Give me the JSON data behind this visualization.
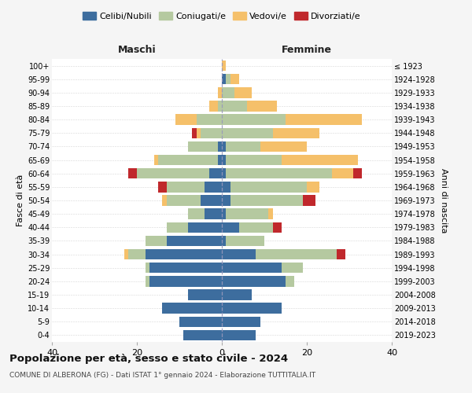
{
  "age_groups": [
    "0-4",
    "5-9",
    "10-14",
    "15-19",
    "20-24",
    "25-29",
    "30-34",
    "35-39",
    "40-44",
    "45-49",
    "50-54",
    "55-59",
    "60-64",
    "65-69",
    "70-74",
    "75-79",
    "80-84",
    "85-89",
    "90-94",
    "95-99",
    "100+"
  ],
  "birth_years": [
    "2019-2023",
    "2014-2018",
    "2009-2013",
    "2004-2008",
    "1999-2003",
    "1994-1998",
    "1989-1993",
    "1984-1988",
    "1979-1983",
    "1974-1978",
    "1969-1973",
    "1964-1968",
    "1959-1963",
    "1954-1958",
    "1949-1953",
    "1944-1948",
    "1939-1943",
    "1934-1938",
    "1929-1933",
    "1924-1928",
    "≤ 1923"
  ],
  "colors": {
    "celibi": "#3d6d9e",
    "coniugati": "#b5c9a0",
    "vedovi": "#f5c06a",
    "divorziati": "#c0282c"
  },
  "maschi": {
    "celibi": [
      9,
      10,
      14,
      8,
      17,
      17,
      18,
      13,
      8,
      4,
      5,
      4,
      3,
      1,
      1,
      0,
      0,
      0,
      0,
      0,
      0
    ],
    "coniugati": [
      0,
      0,
      0,
      0,
      1,
      1,
      4,
      5,
      5,
      4,
      8,
      9,
      17,
      14,
      7,
      5,
      6,
      1,
      0,
      0,
      0
    ],
    "vedovi": [
      0,
      0,
      0,
      0,
      0,
      0,
      1,
      0,
      0,
      0,
      1,
      0,
      0,
      1,
      0,
      1,
      5,
      2,
      1,
      0,
      0
    ],
    "divorziati": [
      0,
      0,
      0,
      0,
      0,
      0,
      0,
      0,
      0,
      0,
      0,
      2,
      2,
      0,
      0,
      1,
      0,
      0,
      0,
      0,
      0
    ]
  },
  "femmine": {
    "celibi": [
      8,
      9,
      14,
      7,
      15,
      14,
      8,
      1,
      4,
      1,
      2,
      2,
      1,
      1,
      1,
      0,
      0,
      0,
      0,
      1,
      0
    ],
    "coniugati": [
      0,
      0,
      0,
      0,
      2,
      5,
      19,
      9,
      8,
      10,
      17,
      18,
      25,
      13,
      8,
      12,
      15,
      6,
      3,
      1,
      0
    ],
    "vedovi": [
      0,
      0,
      0,
      0,
      0,
      0,
      0,
      0,
      0,
      1,
      0,
      3,
      5,
      18,
      11,
      11,
      18,
      7,
      4,
      2,
      1
    ],
    "divorziati": [
      0,
      0,
      0,
      0,
      0,
      0,
      2,
      0,
      2,
      0,
      3,
      0,
      2,
      0,
      0,
      0,
      0,
      0,
      0,
      0,
      0
    ]
  },
  "xlim": 40,
  "title": "Popolazione per età, sesso e stato civile - 2024",
  "subtitle": "COMUNE DI ALBERONA (FG) - Dati ISTAT 1° gennaio 2024 - Elaborazione TUTTITALIA.IT",
  "ylabel_left": "Fasce di età",
  "ylabel_right": "Anni di nascita",
  "xlabel_maschi": "Maschi",
  "xlabel_femmine": "Femmine",
  "legend_labels": [
    "Celibi/Nubili",
    "Coniugati/e",
    "Vedovi/e",
    "Divorziati/e"
  ],
  "bg_color": "#f5f5f5",
  "plot_bg": "#ffffff"
}
